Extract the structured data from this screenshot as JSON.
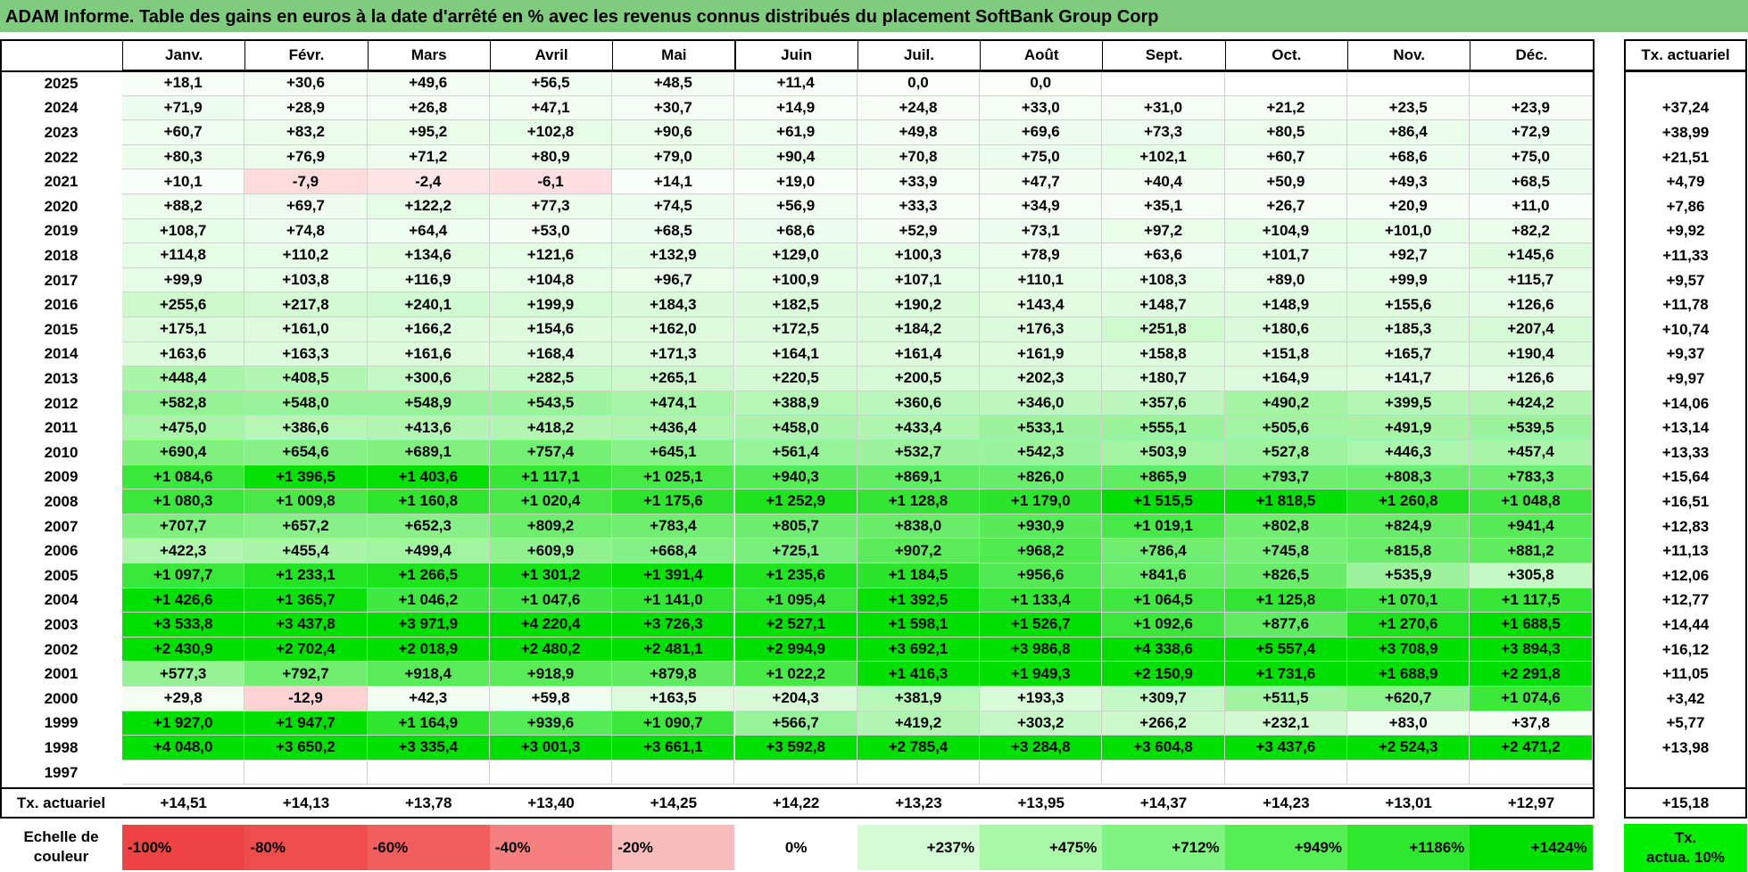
{
  "title": "ADAM Informe. Table des gains en euros à la date d'arrêté en % avec les revenus connus distribués du placement SoftBank Group Corp",
  "months": [
    "Janv.",
    "Févr.",
    "Mars",
    "Avril",
    "Mai",
    "Juin",
    "Juil.",
    "Août",
    "Sept.",
    "Oct.",
    "Nov.",
    "Déc."
  ],
  "actuarial_header": "Tx. actuariel",
  "rows": [
    {
      "year": "2025",
      "values": [
        "+18,1",
        "+30,6",
        "+49,6",
        "+56,5",
        "+48,5",
        "+11,4",
        "0,0",
        "0,0",
        "",
        "",
        "",
        ""
      ],
      "rate": ""
    },
    {
      "year": "2024",
      "values": [
        "+71,9",
        "+28,9",
        "+26,8",
        "+47,1",
        "+30,7",
        "+14,9",
        "+24,8",
        "+33,0",
        "+31,0",
        "+21,2",
        "+23,5",
        "+23,9"
      ],
      "rate": "+37,24"
    },
    {
      "year": "2023",
      "values": [
        "+60,7",
        "+83,2",
        "+95,2",
        "+102,8",
        "+90,6",
        "+61,9",
        "+49,8",
        "+69,6",
        "+73,3",
        "+80,5",
        "+86,4",
        "+72,9"
      ],
      "rate": "+38,99"
    },
    {
      "year": "2022",
      "values": [
        "+80,3",
        "+76,9",
        "+71,2",
        "+80,9",
        "+79,0",
        "+90,4",
        "+70,8",
        "+75,0",
        "+102,1",
        "+60,7",
        "+68,6",
        "+75,0"
      ],
      "rate": "+21,51"
    },
    {
      "year": "2021",
      "values": [
        "+10,1",
        "-7,9",
        "-2,4",
        "-6,1",
        "+14,1",
        "+19,0",
        "+33,9",
        "+47,7",
        "+40,4",
        "+50,9",
        "+49,3",
        "+68,5"
      ],
      "rate": "+4,79"
    },
    {
      "year": "2020",
      "values": [
        "+88,2",
        "+69,7",
        "+122,2",
        "+77,3",
        "+74,5",
        "+56,9",
        "+33,3",
        "+34,9",
        "+35,1",
        "+26,7",
        "+20,9",
        "+11,0"
      ],
      "rate": "+7,86"
    },
    {
      "year": "2019",
      "values": [
        "+108,7",
        "+74,8",
        "+64,4",
        "+53,0",
        "+68,5",
        "+68,6",
        "+52,9",
        "+73,1",
        "+97,2",
        "+104,9",
        "+101,0",
        "+82,2"
      ],
      "rate": "+9,92"
    },
    {
      "year": "2018",
      "values": [
        "+114,8",
        "+110,2",
        "+134,6",
        "+121,6",
        "+132,9",
        "+129,0",
        "+100,3",
        "+78,9",
        "+63,6",
        "+101,7",
        "+92,7",
        "+145,6"
      ],
      "rate": "+11,33"
    },
    {
      "year": "2017",
      "values": [
        "+99,9",
        "+103,8",
        "+116,9",
        "+104,8",
        "+96,7",
        "+100,9",
        "+107,1",
        "+110,1",
        "+108,3",
        "+89,0",
        "+99,9",
        "+115,7"
      ],
      "rate": "+9,57"
    },
    {
      "year": "2016",
      "values": [
        "+255,6",
        "+217,8",
        "+240,1",
        "+199,9",
        "+184,3",
        "+182,5",
        "+190,2",
        "+143,4",
        "+148,7",
        "+148,9",
        "+155,6",
        "+126,6"
      ],
      "rate": "+11,78"
    },
    {
      "year": "2015",
      "values": [
        "+175,1",
        "+161,0",
        "+166,2",
        "+154,6",
        "+162,0",
        "+172,5",
        "+184,2",
        "+176,3",
        "+251,8",
        "+180,6",
        "+185,3",
        "+207,4"
      ],
      "rate": "+10,74"
    },
    {
      "year": "2014",
      "values": [
        "+163,6",
        "+163,3",
        "+161,6",
        "+168,4",
        "+171,3",
        "+164,1",
        "+161,4",
        "+161,9",
        "+158,8",
        "+151,8",
        "+165,7",
        "+190,4"
      ],
      "rate": "+9,37"
    },
    {
      "year": "2013",
      "values": [
        "+448,4",
        "+408,5",
        "+300,6",
        "+282,5",
        "+265,1",
        "+220,5",
        "+200,5",
        "+202,3",
        "+180,7",
        "+164,9",
        "+141,7",
        "+126,6"
      ],
      "rate": "+9,97"
    },
    {
      "year": "2012",
      "values": [
        "+582,8",
        "+548,0",
        "+548,9",
        "+543,5",
        "+474,1",
        "+388,9",
        "+360,6",
        "+346,0",
        "+357,6",
        "+490,2",
        "+399,5",
        "+424,2"
      ],
      "rate": "+14,06"
    },
    {
      "year": "2011",
      "values": [
        "+475,0",
        "+386,6",
        "+413,6",
        "+418,2",
        "+436,4",
        "+458,0",
        "+433,4",
        "+533,1",
        "+555,1",
        "+505,6",
        "+491,9",
        "+539,5"
      ],
      "rate": "+13,14"
    },
    {
      "year": "2010",
      "values": [
        "+690,4",
        "+654,6",
        "+689,1",
        "+757,4",
        "+645,1",
        "+561,4",
        "+532,7",
        "+542,3",
        "+503,9",
        "+527,8",
        "+446,3",
        "+457,4"
      ],
      "rate": "+13,33"
    },
    {
      "year": "2009",
      "values": [
        "+1 084,6",
        "+1 396,5",
        "+1 403,6",
        "+1 117,1",
        "+1 025,1",
        "+940,3",
        "+869,1",
        "+826,0",
        "+865,9",
        "+793,7",
        "+808,3",
        "+783,3"
      ],
      "rate": "+15,64"
    },
    {
      "year": "2008",
      "values": [
        "+1 080,3",
        "+1 009,8",
        "+1 160,8",
        "+1 020,4",
        "+1 175,6",
        "+1 252,9",
        "+1 128,8",
        "+1 179,0",
        "+1 515,5",
        "+1 818,5",
        "+1 260,8",
        "+1 048,8"
      ],
      "rate": "+16,51"
    },
    {
      "year": "2007",
      "values": [
        "+707,7",
        "+657,2",
        "+652,3",
        "+809,2",
        "+783,4",
        "+805,7",
        "+838,0",
        "+930,9",
        "+1 019,1",
        "+802,8",
        "+824,9",
        "+941,4"
      ],
      "rate": "+12,83"
    },
    {
      "year": "2006",
      "values": [
        "+422,3",
        "+455,4",
        "+499,4",
        "+609,9",
        "+668,4",
        "+725,1",
        "+907,2",
        "+968,2",
        "+786,4",
        "+745,8",
        "+815,8",
        "+881,2"
      ],
      "rate": "+11,13"
    },
    {
      "year": "2005",
      "values": [
        "+1 097,7",
        "+1 233,1",
        "+1 266,5",
        "+1 301,2",
        "+1 391,4",
        "+1 235,6",
        "+1 184,5",
        "+956,6",
        "+841,6",
        "+826,5",
        "+535,9",
        "+305,8"
      ],
      "rate": "+12,06"
    },
    {
      "year": "2004",
      "values": [
        "+1 426,6",
        "+1 365,7",
        "+1 046,2",
        "+1 047,6",
        "+1 141,0",
        "+1 095,4",
        "+1 392,5",
        "+1 133,4",
        "+1 064,5",
        "+1 125,8",
        "+1 070,1",
        "+1 117,5"
      ],
      "rate": "+12,77"
    },
    {
      "year": "2003",
      "values": [
        "+3 533,8",
        "+3 437,8",
        "+3 971,9",
        "+4 220,4",
        "+3 726,3",
        "+2 527,1",
        "+1 598,1",
        "+1 526,7",
        "+1 092,6",
        "+877,6",
        "+1 270,6",
        "+1 688,5"
      ],
      "rate": "+14,44"
    },
    {
      "year": "2002",
      "values": [
        "+2 430,9",
        "+2 702,4",
        "+2 018,9",
        "+2 480,2",
        "+2 481,1",
        "+2 994,9",
        "+3 692,1",
        "+3 986,8",
        "+4 338,6",
        "+5 557,4",
        "+3 708,9",
        "+3 894,3"
      ],
      "rate": "+16,12"
    },
    {
      "year": "2001",
      "values": [
        "+577,3",
        "+792,7",
        "+918,4",
        "+918,9",
        "+879,8",
        "+1 022,2",
        "+1 416,3",
        "+1 949,3",
        "+2 150,9",
        "+1 731,6",
        "+1 688,9",
        "+2 291,8"
      ],
      "rate": "+11,05"
    },
    {
      "year": "2000",
      "values": [
        "+29,8",
        "-12,9",
        "+42,3",
        "+59,8",
        "+163,5",
        "+204,3",
        "+381,9",
        "+193,3",
        "+309,7",
        "+511,5",
        "+620,7",
        "+1 074,6"
      ],
      "rate": "+3,42"
    },
    {
      "year": "1999",
      "values": [
        "+1 927,0",
        "+1 947,7",
        "+1 164,9",
        "+939,6",
        "+1 090,7",
        "+566,7",
        "+419,2",
        "+303,2",
        "+266,2",
        "+232,1",
        "+83,0",
        "+37,8"
      ],
      "rate": "+5,77"
    },
    {
      "year": "1998",
      "values": [
        "+4 048,0",
        "+3 650,2",
        "+3 335,4",
        "+3 001,3",
        "+3 661,1",
        "+3 592,8",
        "+2 785,4",
        "+3 284,8",
        "+3 604,8",
        "+3 437,6",
        "+2 524,3",
        "+2 471,2"
      ],
      "rate": "+13,98"
    },
    {
      "year": "1997",
      "values": [
        "",
        "",
        "",
        "",
        "",
        "",
        "",
        "",
        "",
        "",
        "",
        ""
      ],
      "rate": ""
    }
  ],
  "footer": {
    "label": "Tx. actuariel",
    "values": [
      "+14,51",
      "+14,13",
      "+13,78",
      "+13,40",
      "+14,25",
      "+14,22",
      "+13,23",
      "+13,95",
      "+14,37",
      "+14,23",
      "+13,01",
      "+12,97"
    ],
    "rate": "+15,18"
  },
  "scale": {
    "label_line1": "Echelle de",
    "label_line2": "couleur",
    "items": [
      {
        "label": "-100%",
        "color": "#ee4444"
      },
      {
        "label": "-80%",
        "color": "#f04e4e"
      },
      {
        "label": "-60%",
        "color": "#f25e5e"
      },
      {
        "label": "-40%",
        "color": "#f48080"
      },
      {
        "label": "-20%",
        "color": "#f8bcbc"
      },
      {
        "label": "0%",
        "color": "#ffffff"
      },
      {
        "label": "+237%",
        "color": "#d4fcd4"
      },
      {
        "label": "+475%",
        "color": "#a8f8a8"
      },
      {
        "label": "+712%",
        "color": "#80f480"
      },
      {
        "label": "+949%",
        "color": "#55ee55"
      },
      {
        "label": "+1186%",
        "color": "#2de82d"
      },
      {
        "label": "+1424%",
        "color": "#00e000"
      }
    ],
    "act_line1": "Tx.",
    "act_line2": "actua. 10%"
  }
}
